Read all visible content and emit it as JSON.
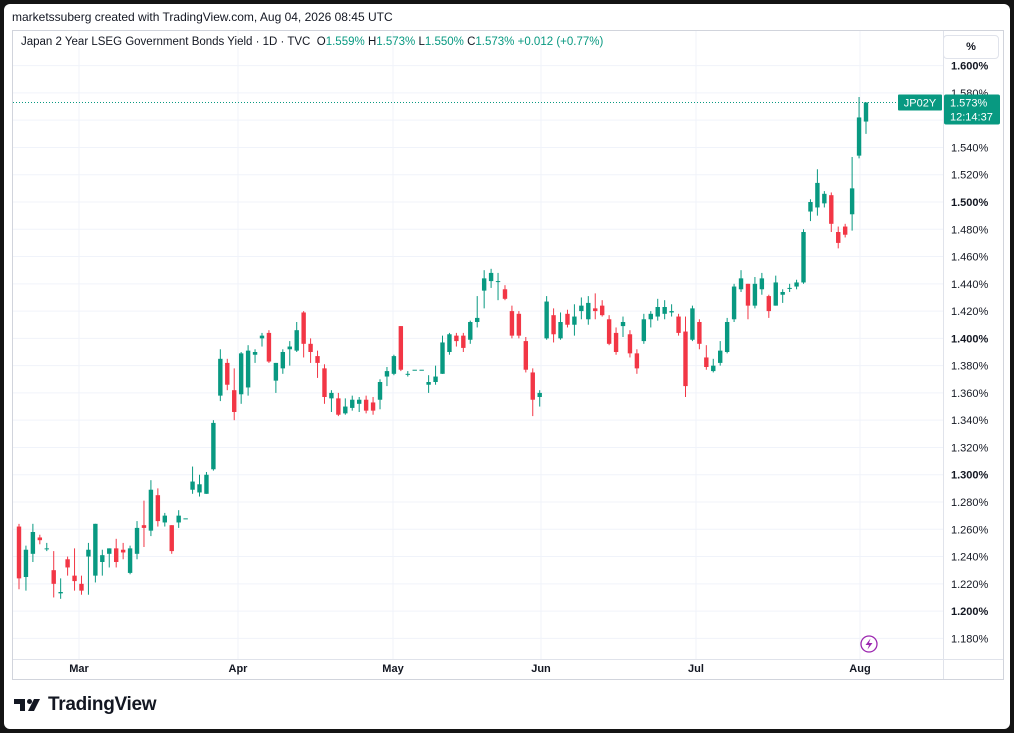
{
  "header": {
    "creator": "marketssuberg created with TradingView.com, Aug 04, 2026 08:45 UTC"
  },
  "legend": {
    "title": "Japan 2 Year LSEG Government Bonds Yield · 1D · TVC",
    "o_label": "O",
    "o_value": "1.559%",
    "h_label": "H",
    "h_value": "1.573%",
    "l_label": "L",
    "l_value": "1.550%",
    "c_label": "C",
    "c_value": "1.573%",
    "change": "+0.012 (+0.77%)"
  },
  "scale_button": "%",
  "price_tag": {
    "symbol": "JP02Y",
    "price": "1.573%",
    "countdown": "12:14:37"
  },
  "brand": {
    "name": "TradingView"
  },
  "colors": {
    "up": "#089981",
    "down": "#f23645",
    "grid": "#f0f3fa",
    "text": "#131722",
    "event": "#9c27b0"
  },
  "chart_data": {
    "type": "candlestick",
    "y_axis": {
      "range": [
        1.17,
        1.61
      ],
      "ticks": [
        "1.180%",
        "1.200%",
        "1.220%",
        "1.240%",
        "1.260%",
        "1.280%",
        "1.300%",
        "1.320%",
        "1.340%",
        "1.360%",
        "1.380%",
        "1.400%",
        "1.420%",
        "1.440%",
        "1.460%",
        "1.480%",
        "1.500%",
        "1.520%",
        "1.540%",
        "1.560%",
        "1.580%",
        "1.600%"
      ],
      "bold_ticks": [
        "1.200%",
        "1.300%",
        "1.400%",
        "1.500%",
        "1.600%"
      ]
    },
    "x_axis": {
      "labels": [
        "Mar",
        "Apr",
        "May",
        "Jun",
        "Jul",
        "Aug"
      ]
    },
    "last_price": 1.573,
    "candles": [
      {
        "o": 1.262,
        "h": 1.264,
        "l": 1.216,
        "c": 1.224
      },
      {
        "o": 1.225,
        "h": 1.248,
        "l": 1.215,
        "c": 1.245
      },
      {
        "o": 1.242,
        "h": 1.264,
        "l": 1.236,
        "c": 1.258
      },
      {
        "o": 1.254,
        "h": 1.256,
        "l": 1.249,
        "c": 1.252
      },
      {
        "o": 1.246,
        "h": 1.25,
        "l": 1.244,
        "c": 1.246
      },
      {
        "o": 1.23,
        "h": 1.244,
        "l": 1.21,
        "c": 1.22
      },
      {
        "o": 1.213,
        "h": 1.224,
        "l": 1.209,
        "c": 1.214
      },
      {
        "o": 1.238,
        "h": 1.24,
        "l": 1.226,
        "c": 1.232
      },
      {
        "o": 1.226,
        "h": 1.246,
        "l": 1.215,
        "c": 1.222
      },
      {
        "o": 1.22,
        "h": 1.226,
        "l": 1.212,
        "c": 1.215
      },
      {
        "o": 1.24,
        "h": 1.25,
        "l": 1.212,
        "c": 1.245
      },
      {
        "o": 1.226,
        "h": 1.264,
        "l": 1.221,
        "c": 1.264
      },
      {
        "o": 1.236,
        "h": 1.245,
        "l": 1.226,
        "c": 1.241
      },
      {
        "o": 1.242,
        "h": 1.246,
        "l": 1.232,
        "c": 1.246
      },
      {
        "o": 1.246,
        "h": 1.253,
        "l": 1.232,
        "c": 1.236
      },
      {
        "o": 1.245,
        "h": 1.25,
        "l": 1.238,
        "c": 1.243
      },
      {
        "o": 1.228,
        "h": 1.248,
        "l": 1.227,
        "c": 1.246
      },
      {
        "o": 1.242,
        "h": 1.266,
        "l": 1.238,
        "c": 1.261
      },
      {
        "o": 1.263,
        "h": 1.281,
        "l": 1.247,
        "c": 1.261
      },
      {
        "o": 1.259,
        "h": 1.296,
        "l": 1.255,
        "c": 1.289
      },
      {
        "o": 1.285,
        "h": 1.29,
        "l": 1.262,
        "c": 1.266
      },
      {
        "o": 1.265,
        "h": 1.272,
        "l": 1.262,
        "c": 1.27
      },
      {
        "o": 1.263,
        "h": 1.263,
        "l": 1.242,
        "c": 1.244
      },
      {
        "o": 1.265,
        "h": 1.274,
        "l": 1.261,
        "c": 1.27
      },
      {
        "o": 1.268,
        "h": 1.268,
        "l": 1.268,
        "c": 1.268
      },
      {
        "o": 1.289,
        "h": 1.306,
        "l": 1.286,
        "c": 1.295
      },
      {
        "o": 1.287,
        "h": 1.3,
        "l": 1.284,
        "c": 1.293
      },
      {
        "o": 1.286,
        "h": 1.302,
        "l": 1.286,
        "c": 1.3
      },
      {
        "o": 1.304,
        "h": 1.34,
        "l": 1.303,
        "c": 1.338
      },
      {
        "o": 1.358,
        "h": 1.392,
        "l": 1.354,
        "c": 1.385
      },
      {
        "o": 1.382,
        "h": 1.385,
        "l": 1.362,
        "c": 1.366
      },
      {
        "o": 1.362,
        "h": 1.378,
        "l": 1.34,
        "c": 1.346
      },
      {
        "o": 1.359,
        "h": 1.39,
        "l": 1.352,
        "c": 1.389
      },
      {
        "o": 1.364,
        "h": 1.395,
        "l": 1.358,
        "c": 1.391
      },
      {
        "o": 1.388,
        "h": 1.392,
        "l": 1.382,
        "c": 1.39
      },
      {
        "o": 1.4,
        "h": 1.404,
        "l": 1.394,
        "c": 1.402
      },
      {
        "o": 1.404,
        "h": 1.406,
        "l": 1.382,
        "c": 1.383
      },
      {
        "o": 1.369,
        "h": 1.382,
        "l": 1.36,
        "c": 1.382
      },
      {
        "o": 1.378,
        "h": 1.392,
        "l": 1.374,
        "c": 1.39
      },
      {
        "o": 1.392,
        "h": 1.398,
        "l": 1.38,
        "c": 1.394
      },
      {
        "o": 1.391,
        "h": 1.412,
        "l": 1.39,
        "c": 1.406
      },
      {
        "o": 1.419,
        "h": 1.42,
        "l": 1.386,
        "c": 1.396
      },
      {
        "o": 1.396,
        "h": 1.4,
        "l": 1.382,
        "c": 1.39
      },
      {
        "o": 1.387,
        "h": 1.391,
        "l": 1.371,
        "c": 1.382
      },
      {
        "o": 1.378,
        "h": 1.381,
        "l": 1.352,
        "c": 1.357
      },
      {
        "o": 1.356,
        "h": 1.362,
        "l": 1.346,
        "c": 1.36
      },
      {
        "o": 1.356,
        "h": 1.36,
        "l": 1.343,
        "c": 1.344
      },
      {
        "o": 1.345,
        "h": 1.356,
        "l": 1.344,
        "c": 1.35
      },
      {
        "o": 1.349,
        "h": 1.358,
        "l": 1.347,
        "c": 1.355
      },
      {
        "o": 1.352,
        "h": 1.357,
        "l": 1.346,
        "c": 1.355
      },
      {
        "o": 1.355,
        "h": 1.358,
        "l": 1.345,
        "c": 1.347
      },
      {
        "o": 1.353,
        "h": 1.357,
        "l": 1.344,
        "c": 1.347
      },
      {
        "o": 1.355,
        "h": 1.37,
        "l": 1.348,
        "c": 1.368
      },
      {
        "o": 1.372,
        "h": 1.379,
        "l": 1.365,
        "c": 1.376
      },
      {
        "o": 1.374,
        "h": 1.388,
        "l": 1.373,
        "c": 1.387
      },
      {
        "o": 1.409,
        "h": 1.409,
        "l": 1.376,
        "c": 1.377
      },
      {
        "o": 1.374,
        "h": 1.376,
        "l": 1.372,
        "c": 1.374
      },
      {
        "o": 1.377,
        "h": 1.377,
        "l": 1.377,
        "c": 1.377
      },
      {
        "o": 1.377,
        "h": 1.377,
        "l": 1.377,
        "c": 1.377
      },
      {
        "o": 1.366,
        "h": 1.373,
        "l": 1.36,
        "c": 1.368
      },
      {
        "o": 1.368,
        "h": 1.38,
        "l": 1.366,
        "c": 1.372
      },
      {
        "o": 1.374,
        "h": 1.402,
        "l": 1.374,
        "c": 1.397
      },
      {
        "o": 1.39,
        "h": 1.404,
        "l": 1.388,
        "c": 1.403
      },
      {
        "o": 1.402,
        "h": 1.404,
        "l": 1.394,
        "c": 1.398
      },
      {
        "o": 1.402,
        "h": 1.404,
        "l": 1.39,
        "c": 1.393
      },
      {
        "o": 1.399,
        "h": 1.413,
        "l": 1.396,
        "c": 1.412
      },
      {
        "o": 1.412,
        "h": 1.431,
        "l": 1.408,
        "c": 1.415
      },
      {
        "o": 1.435,
        "h": 1.45,
        "l": 1.422,
        "c": 1.444
      },
      {
        "o": 1.442,
        "h": 1.451,
        "l": 1.437,
        "c": 1.448
      },
      {
        "o": 1.442,
        "h": 1.448,
        "l": 1.428,
        "c": 1.442
      },
      {
        "o": 1.436,
        "h": 1.439,
        "l": 1.428,
        "c": 1.429
      },
      {
        "o": 1.42,
        "h": 1.424,
        "l": 1.4,
        "c": 1.402
      },
      {
        "o": 1.418,
        "h": 1.42,
        "l": 1.4,
        "c": 1.402
      },
      {
        "o": 1.398,
        "h": 1.401,
        "l": 1.375,
        "c": 1.377
      },
      {
        "o": 1.375,
        "h": 1.378,
        "l": 1.343,
        "c": 1.355
      },
      {
        "o": 1.357,
        "h": 1.362,
        "l": 1.35,
        "c": 1.36
      },
      {
        "o": 1.4,
        "h": 1.431,
        "l": 1.399,
        "c": 1.427
      },
      {
        "o": 1.417,
        "h": 1.422,
        "l": 1.397,
        "c": 1.403
      },
      {
        "o": 1.4,
        "h": 1.419,
        "l": 1.399,
        "c": 1.412
      },
      {
        "o": 1.418,
        "h": 1.421,
        "l": 1.408,
        "c": 1.41
      },
      {
        "o": 1.41,
        "h": 1.425,
        "l": 1.402,
        "c": 1.416
      },
      {
        "o": 1.42,
        "h": 1.43,
        "l": 1.414,
        "c": 1.424
      },
      {
        "o": 1.414,
        "h": 1.431,
        "l": 1.41,
        "c": 1.426
      },
      {
        "o": 1.422,
        "h": 1.433,
        "l": 1.414,
        "c": 1.42
      },
      {
        "o": 1.424,
        "h": 1.428,
        "l": 1.416,
        "c": 1.417
      },
      {
        "o": 1.414,
        "h": 1.417,
        "l": 1.395,
        "c": 1.396
      },
      {
        "o": 1.404,
        "h": 1.408,
        "l": 1.388,
        "c": 1.39
      },
      {
        "o": 1.409,
        "h": 1.416,
        "l": 1.401,
        "c": 1.412
      },
      {
        "o": 1.403,
        "h": 1.406,
        "l": 1.386,
        "c": 1.389
      },
      {
        "o": 1.389,
        "h": 1.392,
        "l": 1.374,
        "c": 1.378
      },
      {
        "o": 1.398,
        "h": 1.418,
        "l": 1.396,
        "c": 1.414
      },
      {
        "o": 1.414,
        "h": 1.42,
        "l": 1.408,
        "c": 1.418
      },
      {
        "o": 1.416,
        "h": 1.429,
        "l": 1.413,
        "c": 1.423
      },
      {
        "o": 1.418,
        "h": 1.428,
        "l": 1.414,
        "c": 1.423
      },
      {
        "o": 1.419,
        "h": 1.425,
        "l": 1.416,
        "c": 1.42
      },
      {
        "o": 1.416,
        "h": 1.418,
        "l": 1.402,
        "c": 1.404
      },
      {
        "o": 1.405,
        "h": 1.416,
        "l": 1.357,
        "c": 1.365
      },
      {
        "o": 1.399,
        "h": 1.424,
        "l": 1.398,
        "c": 1.422
      },
      {
        "o": 1.412,
        "h": 1.414,
        "l": 1.392,
        "c": 1.396
      },
      {
        "o": 1.386,
        "h": 1.395,
        "l": 1.377,
        "c": 1.379
      },
      {
        "o": 1.376,
        "h": 1.385,
        "l": 1.375,
        "c": 1.38
      },
      {
        "o": 1.382,
        "h": 1.398,
        "l": 1.38,
        "c": 1.391
      },
      {
        "o": 1.39,
        "h": 1.415,
        "l": 1.389,
        "c": 1.412
      },
      {
        "o": 1.414,
        "h": 1.44,
        "l": 1.412,
        "c": 1.438
      },
      {
        "o": 1.436,
        "h": 1.45,
        "l": 1.434,
        "c": 1.444
      },
      {
        "o": 1.44,
        "h": 1.44,
        "l": 1.414,
        "c": 1.424
      },
      {
        "o": 1.424,
        "h": 1.445,
        "l": 1.422,
        "c": 1.44
      },
      {
        "o": 1.436,
        "h": 1.448,
        "l": 1.432,
        "c": 1.444
      },
      {
        "o": 1.431,
        "h": 1.432,
        "l": 1.415,
        "c": 1.42
      },
      {
        "o": 1.424,
        "h": 1.446,
        "l": 1.424,
        "c": 1.441
      },
      {
        "o": 1.432,
        "h": 1.436,
        "l": 1.426,
        "c": 1.434
      },
      {
        "o": 1.437,
        "h": 1.44,
        "l": 1.434,
        "c": 1.437
      },
      {
        "o": 1.438,
        "h": 1.443,
        "l": 1.436,
        "c": 1.441
      },
      {
        "o": 1.441,
        "h": 1.48,
        "l": 1.44,
        "c": 1.478
      },
      {
        "o": 1.493,
        "h": 1.502,
        "l": 1.486,
        "c": 1.5
      },
      {
        "o": 1.496,
        "h": 1.524,
        "l": 1.49,
        "c": 1.514
      },
      {
        "o": 1.499,
        "h": 1.508,
        "l": 1.496,
        "c": 1.506
      },
      {
        "o": 1.505,
        "h": 1.507,
        "l": 1.478,
        "c": 1.484
      },
      {
        "o": 1.478,
        "h": 1.482,
        "l": 1.466,
        "c": 1.47
      },
      {
        "o": 1.482,
        "h": 1.484,
        "l": 1.474,
        "c": 1.476
      },
      {
        "o": 1.491,
        "h": 1.533,
        "l": 1.479,
        "c": 1.51
      },
      {
        "o": 1.534,
        "h": 1.577,
        "l": 1.532,
        "c": 1.562
      },
      {
        "o": 1.559,
        "h": 1.573,
        "l": 1.55,
        "c": 1.573
      }
    ]
  }
}
